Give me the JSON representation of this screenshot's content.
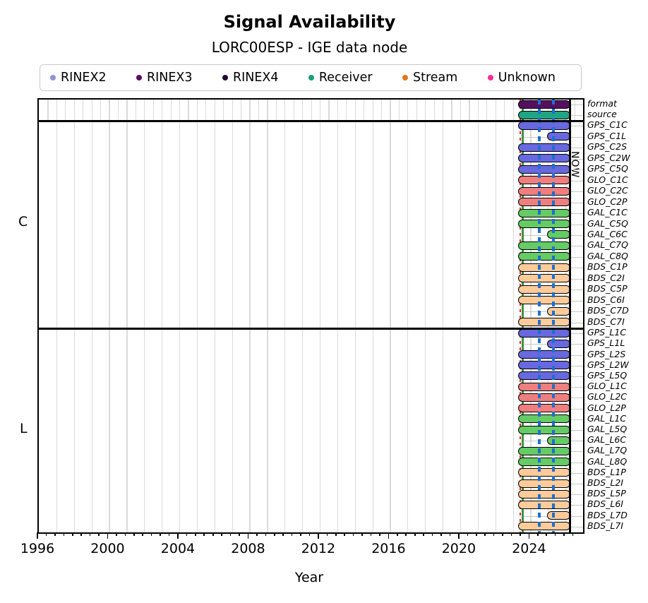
{
  "title": "Signal Availability",
  "subtitle": "LORC00ESP - IGE data node",
  "xlabel": "Year",
  "now_label": "NOW",
  "sections": [
    {
      "label": "C"
    },
    {
      "label": "L"
    }
  ],
  "legend": {
    "items": [
      {
        "key": "rinex2",
        "label": "RINEX2",
        "color": "#9292da"
      },
      {
        "key": "rinex3",
        "label": "RINEX3",
        "color": "#5a0f63"
      },
      {
        "key": "rinex4",
        "label": "RINEX4",
        "color": "#220a33"
      },
      {
        "key": "receiver",
        "label": "Receiver",
        "color": "#18a07c"
      },
      {
        "key": "stream",
        "label": "Stream",
        "color": "#e2771c"
      },
      {
        "key": "unknown",
        "label": "Unknown",
        "color": "#fc2e95"
      }
    ]
  },
  "chart_data": {
    "type": "timeline",
    "title": "Signal Availability",
    "subtitle": "LORC00ESP - IGE data node",
    "xlabel": "Year",
    "axis": {
      "min_year": 1996,
      "max_year": 2027,
      "major_ticks": [
        1996,
        2000,
        2004,
        2008,
        2012,
        2016,
        2020,
        2024
      ],
      "minor_tick_step": 0.5,
      "grid": "vertical-yearly",
      "header_grid_step": 0.5
    },
    "colors": {
      "GPS": "#6868e0",
      "GLO": "#ef7f7f",
      "GAL": "#65cb65",
      "BDS": "#fecb9a",
      "format_rinex3": "#54105f",
      "source_receiver": "#1fa484",
      "grid": "#dadada",
      "row_line": "#bfcdbf",
      "marker_green": "#3c9440",
      "marker_red": "#d42a2a",
      "marker_blue": "#1e6fd0"
    },
    "markers": {
      "red_dashed_year": 2023.42,
      "green_solid_year": 2023.55,
      "blue_dashed_years": [
        2024.5,
        2025.3
      ],
      "now_year": 2026.25,
      "now_label": "NOW"
    },
    "bar_defaults": {
      "start_year": 2023.3,
      "late_start_year": 2024.95,
      "end_year": 2026.35
    },
    "header_rows": [
      {
        "label": "format",
        "color_key": "format_rinex3",
        "duration": "full"
      },
      {
        "label": "source",
        "color_key": "source_receiver",
        "duration": "full"
      }
    ],
    "groups": [
      {
        "name": "C",
        "rows": [
          {
            "label": "GPS_C1C",
            "system": "GPS",
            "duration": "full"
          },
          {
            "label": "GPS_C1L",
            "system": "GPS",
            "duration": "late"
          },
          {
            "label": "GPS_C2S",
            "system": "GPS",
            "duration": "full"
          },
          {
            "label": "GPS_C2W",
            "system": "GPS",
            "duration": "full"
          },
          {
            "label": "GPS_C5Q",
            "system": "GPS",
            "duration": "full"
          },
          {
            "label": "GLO_C1C",
            "system": "GLO",
            "duration": "full"
          },
          {
            "label": "GLO_C2C",
            "system": "GLO",
            "duration": "full"
          },
          {
            "label": "GLO_C2P",
            "system": "GLO",
            "duration": "full"
          },
          {
            "label": "GAL_C1C",
            "system": "GAL",
            "duration": "full"
          },
          {
            "label": "GAL_C5Q",
            "system": "GAL",
            "duration": "full"
          },
          {
            "label": "GAL_C6C",
            "system": "GAL",
            "duration": "late"
          },
          {
            "label": "GAL_C7Q",
            "system": "GAL",
            "duration": "full"
          },
          {
            "label": "GAL_C8Q",
            "system": "GAL",
            "duration": "full"
          },
          {
            "label": "BDS_C1P",
            "system": "BDS",
            "duration": "full"
          },
          {
            "label": "BDS_C2I",
            "system": "BDS",
            "duration": "full"
          },
          {
            "label": "BDS_C5P",
            "system": "BDS",
            "duration": "full"
          },
          {
            "label": "BDS_C6I",
            "system": "BDS",
            "duration": "full"
          },
          {
            "label": "BDS_C7D",
            "system": "BDS",
            "duration": "late"
          },
          {
            "label": "BDS_C7I",
            "system": "BDS",
            "duration": "full"
          }
        ]
      },
      {
        "name": "L",
        "rows": [
          {
            "label": "GPS_L1C",
            "system": "GPS",
            "duration": "full"
          },
          {
            "label": "GPS_L1L",
            "system": "GPS",
            "duration": "late"
          },
          {
            "label": "GPS_L2S",
            "system": "GPS",
            "duration": "full"
          },
          {
            "label": "GPS_L2W",
            "system": "GPS",
            "duration": "full"
          },
          {
            "label": "GPS_L5Q",
            "system": "GPS",
            "duration": "full"
          },
          {
            "label": "GLO_L1C",
            "system": "GLO",
            "duration": "full"
          },
          {
            "label": "GLO_L2C",
            "system": "GLO",
            "duration": "full"
          },
          {
            "label": "GLO_L2P",
            "system": "GLO",
            "duration": "full"
          },
          {
            "label": "GAL_L1C",
            "system": "GAL",
            "duration": "full"
          },
          {
            "label": "GAL_L5Q",
            "system": "GAL",
            "duration": "full"
          },
          {
            "label": "GAL_L6C",
            "system": "GAL",
            "duration": "late"
          },
          {
            "label": "GAL_L7Q",
            "system": "GAL",
            "duration": "full"
          },
          {
            "label": "GAL_L8Q",
            "system": "GAL",
            "duration": "full"
          },
          {
            "label": "BDS_L1P",
            "system": "BDS",
            "duration": "full"
          },
          {
            "label": "BDS_L2I",
            "system": "BDS",
            "duration": "full"
          },
          {
            "label": "BDS_L5P",
            "system": "BDS",
            "duration": "full"
          },
          {
            "label": "BDS_L6I",
            "system": "BDS",
            "duration": "full"
          },
          {
            "label": "BDS_L7D",
            "system": "BDS",
            "duration": "late"
          },
          {
            "label": "BDS_L7I",
            "system": "BDS",
            "duration": "full"
          }
        ]
      }
    ]
  }
}
